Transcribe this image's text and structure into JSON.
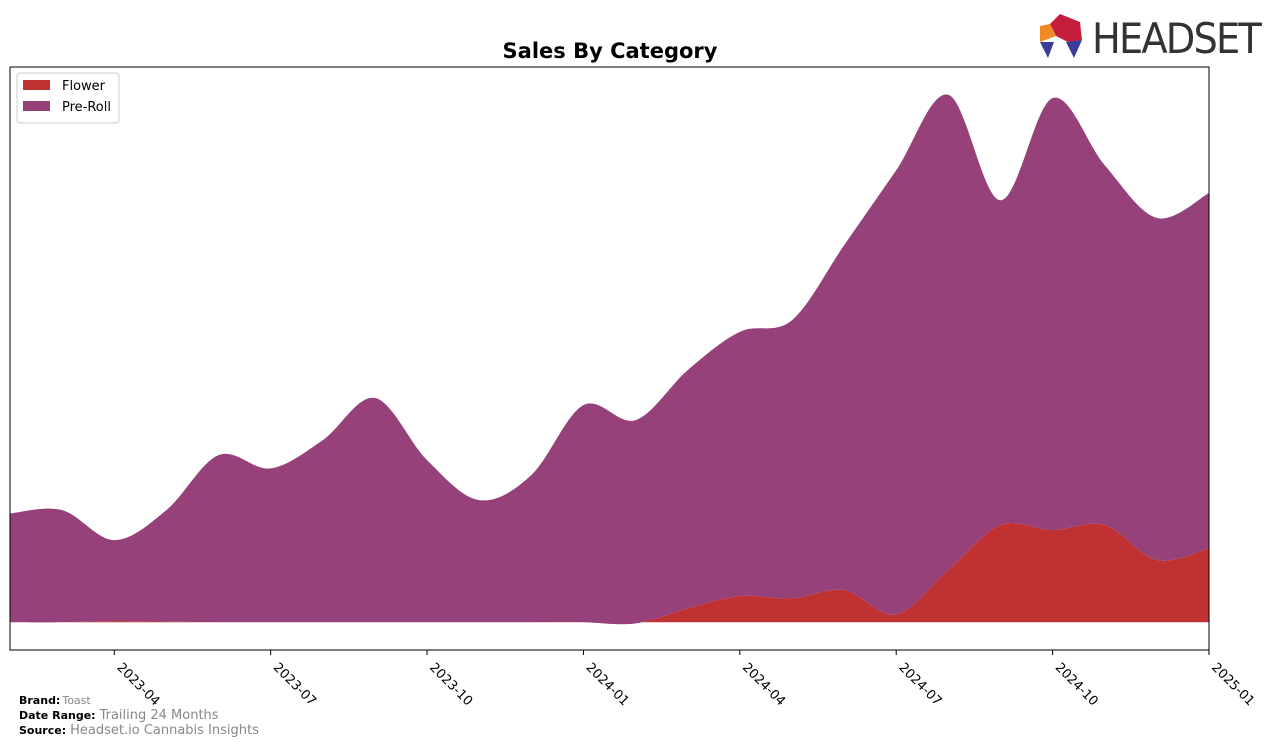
{
  "chart_data": {
    "type": "area",
    "stacked": true,
    "title": "Sales By Category",
    "x": [
      "2023-02",
      "2023-03",
      "2023-04",
      "2023-05",
      "2023-06",
      "2023-07",
      "2023-08",
      "2023-09",
      "2023-10",
      "2023-11",
      "2023-12",
      "2024-01",
      "2024-02",
      "2024-03",
      "2024-04",
      "2024-05",
      "2024-06",
      "2024-07",
      "2024-08",
      "2024-09",
      "2024-10",
      "2024-11",
      "2024-12",
      "2025-01"
    ],
    "xlim": [
      "2023-02",
      "2025-01"
    ],
    "xticks": [
      "2023-04",
      "2023-07",
      "2023-10",
      "2024-01",
      "2024-04",
      "2024-07",
      "2024-10",
      "2025-01"
    ],
    "ylim": [
      -5,
      100
    ],
    "legend": "upper left",
    "series": [
      {
        "name": "Flower",
        "color": "#c03232",
        "values": [
          0,
          0,
          0.2,
          0.1,
          0,
          0,
          0,
          0,
          0,
          0,
          0,
          0,
          -0.2,
          2.5,
          4.7,
          4.3,
          5.8,
          1.4,
          9.4,
          17.5,
          16.6,
          17.5,
          11.2,
          13.3
        ]
      },
      {
        "name": "Pre-Roll",
        "color": "#96417a",
        "values": [
          19.6,
          20.2,
          14.6,
          20.1,
          30.1,
          27.7,
          32.8,
          40.4,
          29.2,
          22.0,
          26.5,
          39.1,
          36.6,
          42.9,
          47.6,
          50.1,
          62.1,
          80.0,
          85.6,
          58.5,
          77.8,
          64.8,
          61.6,
          64.0
        ]
      }
    ]
  },
  "logo": "HEADSET",
  "footer": {
    "brand_label": "Brand:",
    "brand": "Toast",
    "range_label": "Date Range:",
    "range": "Trailing 24 Months",
    "source_label": "Source:",
    "source": "Headset.io Cannabis Insights"
  }
}
